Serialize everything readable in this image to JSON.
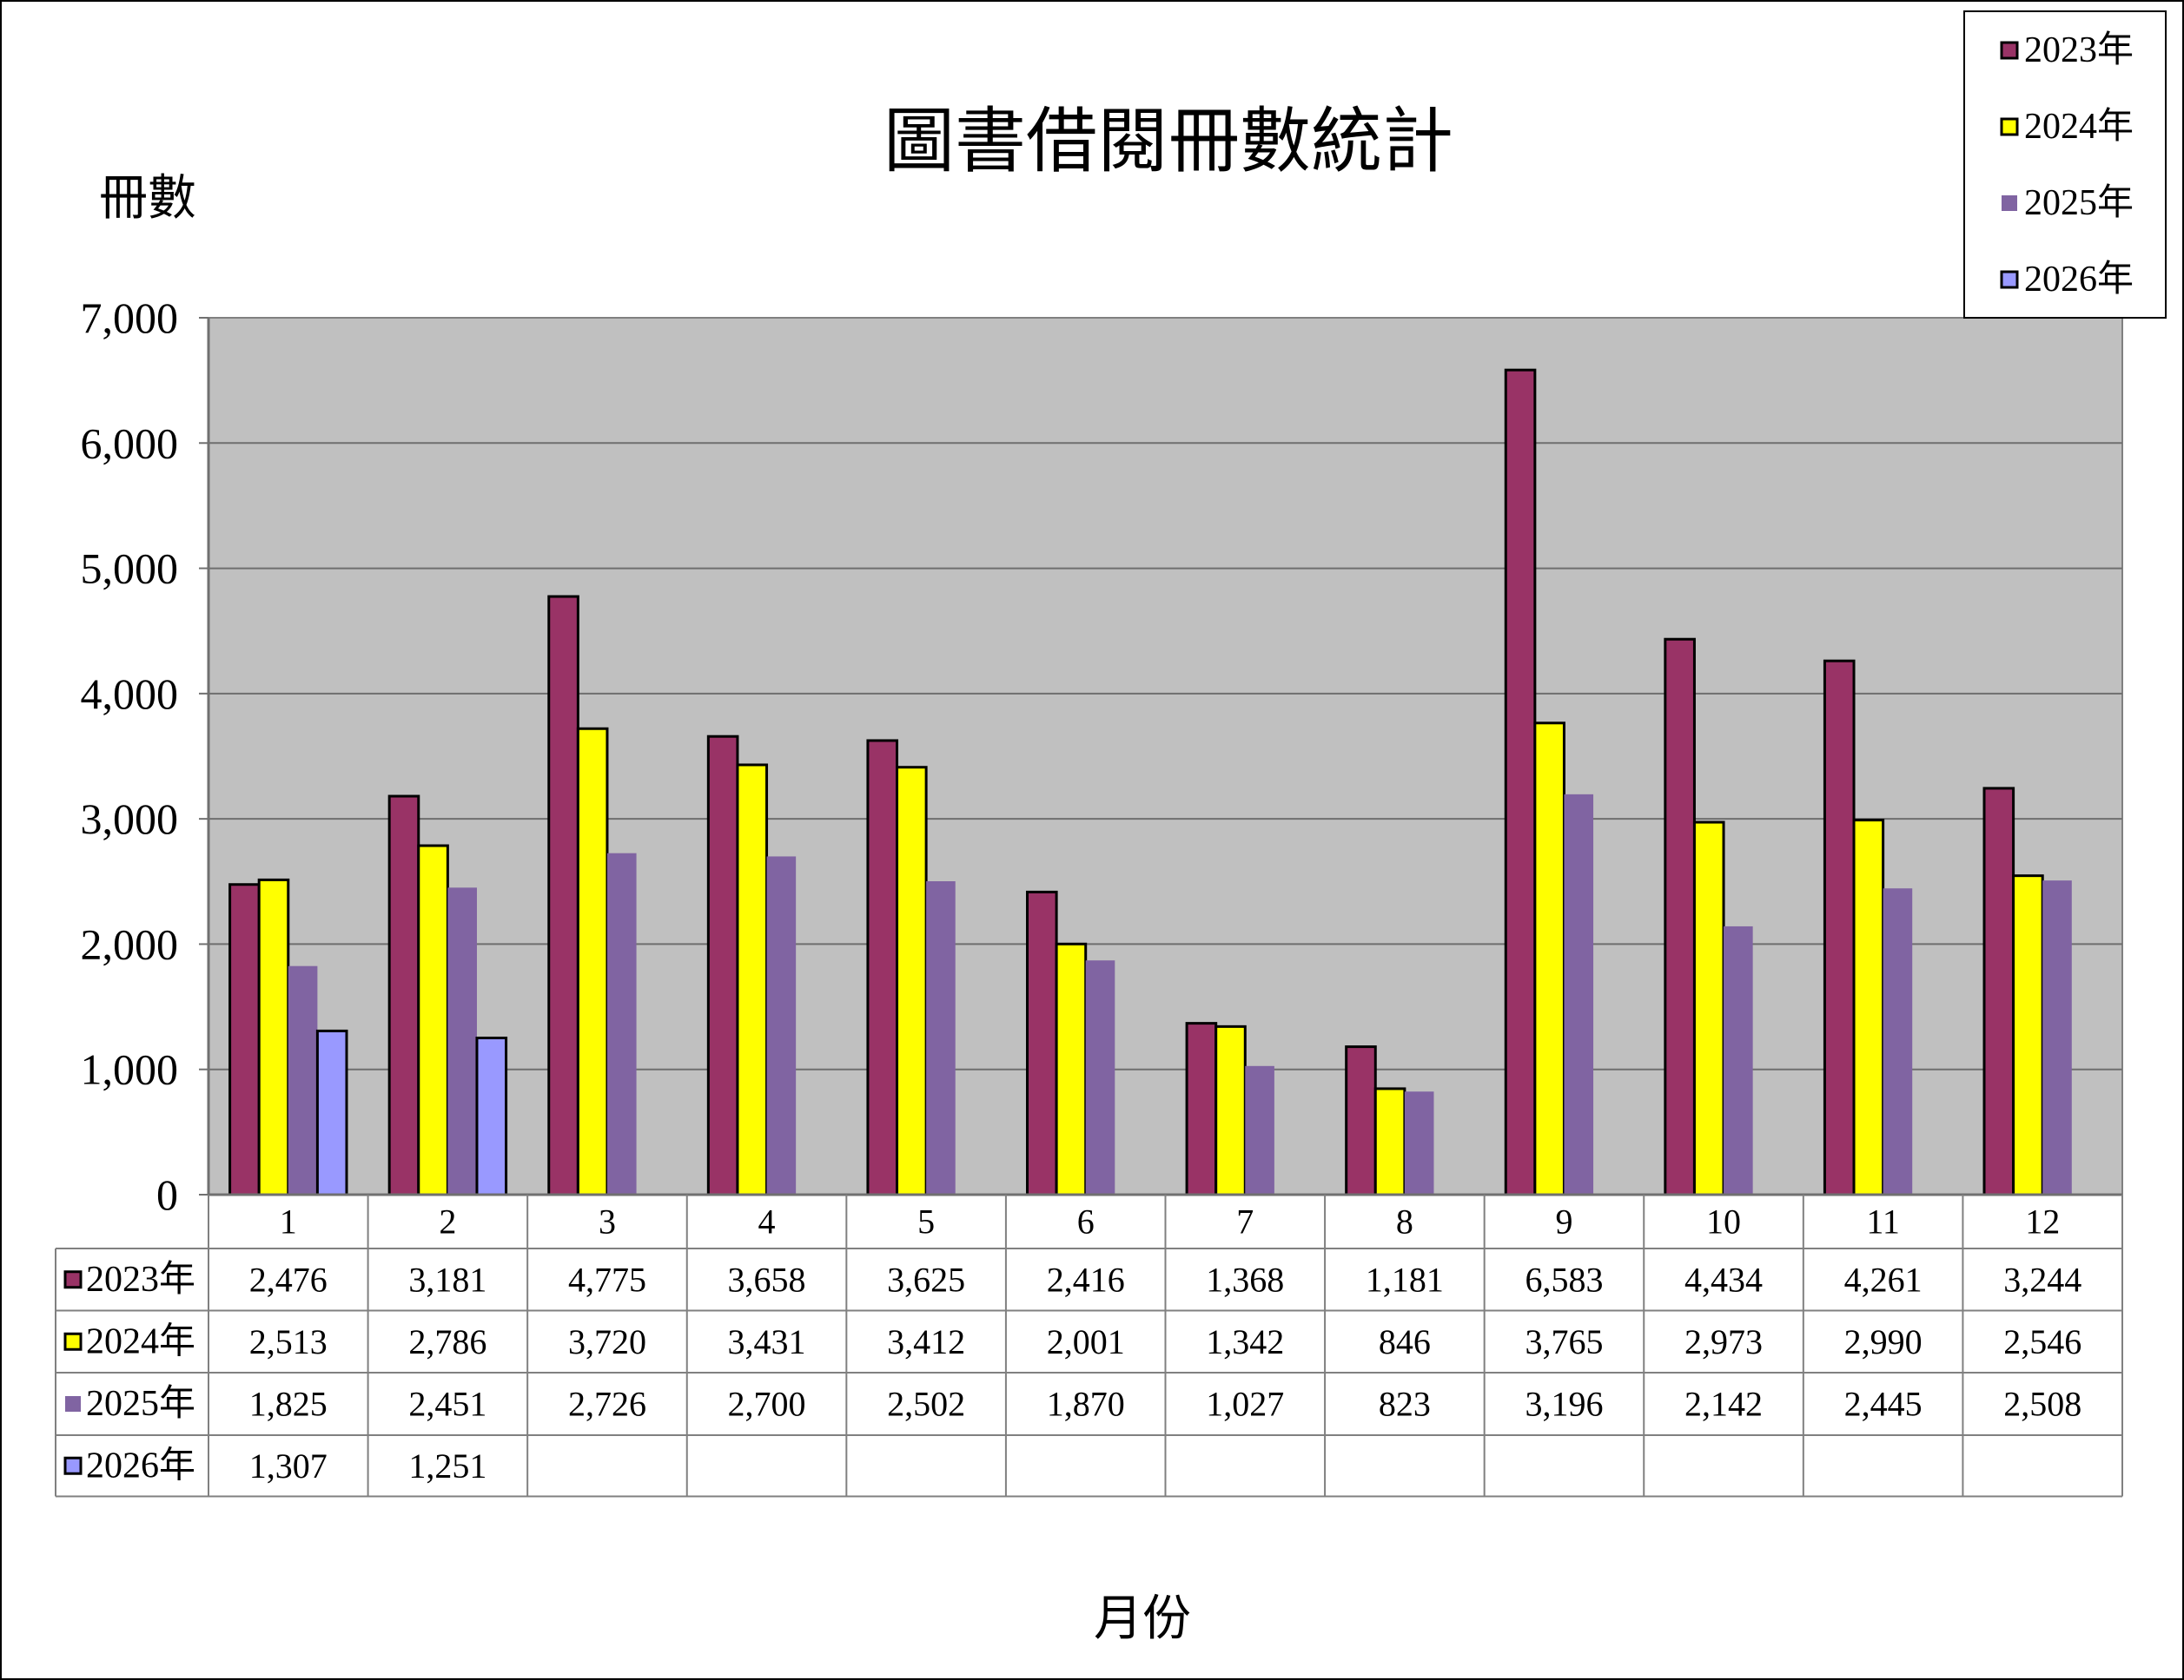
{
  "chart_data": {
    "type": "bar",
    "title": "圖書借閱冊數統計",
    "xlabel": "月份",
    "ylabel": "冊數",
    "ylim": [
      0,
      7000
    ],
    "yticks": [
      0,
      1000,
      2000,
      3000,
      4000,
      5000,
      6000,
      7000
    ],
    "grid": true,
    "legend": "top-right",
    "data_table": true,
    "categories": [
      "1",
      "2",
      "3",
      "4",
      "5",
      "6",
      "7",
      "8",
      "9",
      "10",
      "11",
      "12"
    ],
    "series": [
      {
        "name": "2023年",
        "color": "#993366",
        "values": [
          2476,
          3181,
          4775,
          3658,
          3625,
          2416,
          1368,
          1181,
          6583,
          4434,
          4261,
          3244
        ]
      },
      {
        "name": "2024年",
        "color": "#FFFF00",
        "values": [
          2513,
          2786,
          3720,
          3431,
          3412,
          2001,
          1342,
          846,
          3765,
          2973,
          2990,
          2546
        ]
      },
      {
        "name": "2025年",
        "color": "#8064A2",
        "values": [
          1825,
          2451,
          2726,
          2700,
          2502,
          1870,
          1027,
          823,
          3196,
          2142,
          2445,
          2508
        ]
      },
      {
        "name": "2026年",
        "color": "#9999FF",
        "values": [
          1307,
          1251,
          null,
          null,
          null,
          null,
          null,
          null,
          null,
          null,
          null,
          null
        ]
      }
    ]
  }
}
